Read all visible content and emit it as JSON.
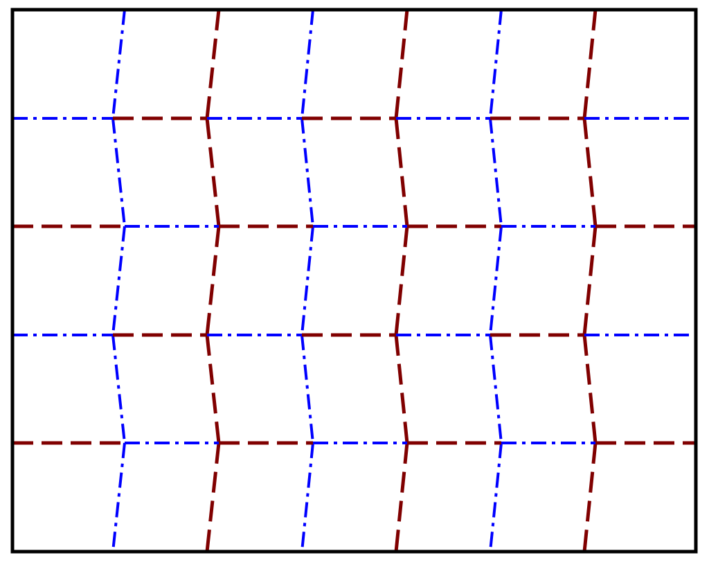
{
  "diagram": {
    "kind": "alternating zigzag grid pattern",
    "style": {
      "frame_color": "#000000",
      "maroon_color": "#800000",
      "blue_color": "#0000ff",
      "background": "#ffffff",
      "maroon_dash": "dashed",
      "blue_dash": "dash-dot"
    },
    "horizontal_lines": [
      "blue",
      "maroon",
      "blue",
      "maroon"
    ],
    "vertical_lines": [
      "blue",
      "maroon",
      "blue",
      "maroon",
      "blue",
      "maroon"
    ],
    "horizontal_segment_pattern": {
      "blue_rows": [
        "blue",
        "maroon",
        "blue",
        "maroon",
        "blue",
        "maroon",
        "blue"
      ],
      "maroon_rows": [
        "maroon",
        "blue",
        "maroon",
        "blue",
        "maroon",
        "blue",
        "maroon"
      ]
    },
    "vertical_segment_pattern": {
      "blue_columns": [
        "blue",
        "blue",
        "blue",
        "blue",
        "blue"
      ],
      "maroon_columns": [
        "maroon",
        "maroon",
        "maroon",
        "maroon",
        "maroon"
      ]
    }
  }
}
